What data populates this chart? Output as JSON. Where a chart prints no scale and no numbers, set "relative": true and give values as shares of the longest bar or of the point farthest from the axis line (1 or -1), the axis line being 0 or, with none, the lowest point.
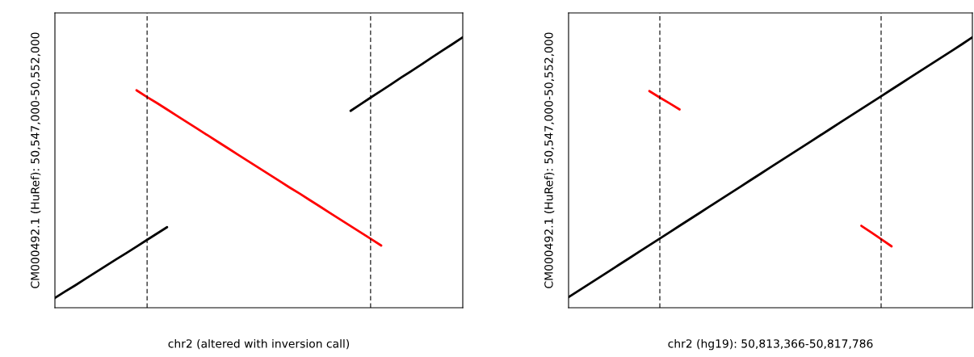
{
  "chart_data": [
    {
      "type": "line",
      "relative": true,
      "xlabel": "chr2 (altered with inversion call)",
      "ylabel": "CM000492.1 (HuRef): 50,547,000-50,552,000",
      "tick_labels": false,
      "legend": false,
      "categories": [
        null,
        null,
        null,
        null,
        null,
        null,
        null,
        null,
        null,
        null,
        null,
        null,
        null,
        null,
        null,
        null,
        null,
        null,
        null,
        null,
        null,
        null,
        null,
        null,
        null,
        null,
        null,
        null,
        null,
        null,
        null,
        null,
        null,
        null,
        null,
        null,
        null,
        null,
        null,
        null,
        null
      ],
      "series": [
        {
          "color": "#000000",
          "values": [
            0.036,
            0.06,
            0.083,
            0.107,
            0.131,
            0.155,
            0.179,
            0.202,
            0.226,
            0.25,
            0.274,
            0.298,
            null,
            null,
            null,
            null,
            null,
            null,
            null,
            null,
            null,
            null,
            null,
            null,
            null,
            null,
            null,
            null,
            null,
            null,
            null,
            null,
            null,
            null,
            null,
            null,
            null,
            null,
            null,
            null,
            null
          ]
        },
        {
          "color": "#ff0000",
          "values": [
            null,
            null,
            null,
            null,
            null,
            null,
            null,
            null,
            0.804,
            0.78,
            0.757,
            0.733,
            0.709,
            0.685,
            0.661,
            0.637,
            0.613,
            0.589,
            0.565,
            0.541,
            0.517,
            0.493,
            0.469,
            0.445,
            0.422,
            0.398,
            0.374,
            0.35,
            0.326,
            0.302,
            0.278,
            0.254,
            0.23,
            null,
            null,
            null,
            null,
            null,
            null,
            null,
            null
          ]
        },
        {
          "color": "#000000",
          "values": [
            null,
            null,
            null,
            null,
            null,
            null,
            null,
            null,
            null,
            null,
            null,
            null,
            null,
            null,
            null,
            null,
            null,
            null,
            null,
            null,
            null,
            null,
            null,
            null,
            null,
            null,
            null,
            null,
            null,
            0.728,
            0.753,
            0.778,
            0.802,
            0.827,
            0.852,
            0.876,
            0.901,
            0.926,
            0.951,
            0.975,
            1.0
          ]
        }
      ]
    },
    {
      "type": "line",
      "relative": true,
      "xlabel": "chr2 (hg19): 50,813,366-50,817,786",
      "ylabel": "CM000492.1 (HuRef): 50,547,000-50,552,000",
      "tick_labels": false,
      "legend": false,
      "categories": [
        null,
        null,
        null,
        null,
        null,
        null,
        null,
        null,
        null,
        null,
        null,
        null,
        null,
        null,
        null,
        null,
        null,
        null,
        null,
        null,
        null,
        null,
        null,
        null,
        null,
        null,
        null,
        null,
        null,
        null,
        null,
        null,
        null,
        null,
        null,
        null,
        null,
        null,
        null,
        null,
        null
      ],
      "series": [
        {
          "color": "#000000",
          "values": [
            0.039,
            0.063,
            0.087,
            0.111,
            0.135,
            0.159,
            0.183,
            0.207,
            0.231,
            0.255,
            0.279,
            0.303,
            0.327,
            0.351,
            0.375,
            0.399,
            0.423,
            0.447,
            0.471,
            0.495,
            0.519,
            0.543,
            0.567,
            0.591,
            0.615,
            0.639,
            0.663,
            0.687,
            0.711,
            0.735,
            0.759,
            0.783,
            0.807,
            0.831,
            0.855,
            0.879,
            0.903,
            0.927,
            0.951,
            0.975,
            1.0
          ]
        },
        {
          "color": "#ff0000",
          "values": [
            null,
            null,
            null,
            null,
            null,
            null,
            null,
            null,
            0.801,
            0.778,
            0.756,
            0.733,
            null,
            null,
            null,
            null,
            null,
            null,
            null,
            null,
            null,
            null,
            null,
            null,
            null,
            null,
            null,
            null,
            null,
            null,
            null,
            null,
            null,
            null,
            null,
            null,
            null,
            null,
            null,
            null,
            null
          ]
        },
        {
          "color": "#ff0000",
          "values": [
            null,
            null,
            null,
            null,
            null,
            null,
            null,
            null,
            null,
            null,
            null,
            null,
            null,
            null,
            null,
            null,
            null,
            null,
            null,
            null,
            null,
            null,
            null,
            null,
            null,
            null,
            null,
            null,
            null,
            0.303,
            0.278,
            0.253,
            0.227,
            null,
            null,
            null,
            null,
            null,
            null,
            null,
            null
          ]
        }
      ]
    }
  ]
}
